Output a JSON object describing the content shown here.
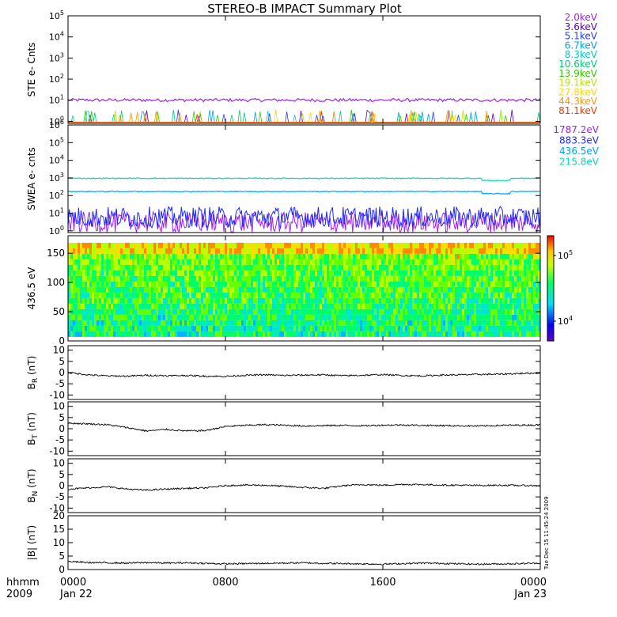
{
  "page": {
    "title": "STEREO-B IMPACT Summary Plot",
    "timestamp_label": "Tue Dec 15 11:45:24 2009"
  },
  "x_axis": {
    "range_hours": [
      0,
      24
    ],
    "tick_hours": [
      0,
      8,
      16,
      24
    ],
    "ticks": [
      "0000",
      "0800",
      "1600",
      "0000"
    ],
    "date_labels": [
      {
        "hour": 0,
        "text": "Jan 22"
      },
      {
        "hour": 24,
        "text": "Jan 23"
      }
    ],
    "row_label_1": "hhmm",
    "row_label_2": "2009"
  },
  "chart_data": [
    {
      "id": "ste",
      "type": "line",
      "ylabel": "STE e- Cnts",
      "yscale": "log",
      "ylim": [
        0.8,
        100000
      ],
      "ytick_exponents": [
        0,
        1,
        2,
        3,
        4,
        5
      ],
      "series": [
        {
          "name": "2.0keV",
          "color": "#a020f0",
          "typical": 10
        },
        {
          "name": "3.6keV",
          "color": "#5a00b4",
          "typical": 0.9
        },
        {
          "name": "5.1keV",
          "color": "#1e3cff",
          "typical": 0.9
        },
        {
          "name": "6.7keV",
          "color": "#00a0e0",
          "typical": 0.9
        },
        {
          "name": "8.3keV",
          "color": "#00c8c8",
          "typical": 0.9
        },
        {
          "name": "10.6keV",
          "color": "#00c878",
          "typical": 0.9
        },
        {
          "name": "13.9keV",
          "color": "#32c800",
          "typical": 0.9
        },
        {
          "name": "19.1keV",
          "color": "#b4e600",
          "typical": 0.9
        },
        {
          "name": "27.8keV",
          "color": "#ffd700",
          "typical": 0.9
        },
        {
          "name": "44.3keV",
          "color": "#ff9600",
          "typical": 0.9
        },
        {
          "name": "81.1keV",
          "color": "#e63c00",
          "typical": 0.9
        }
      ]
    },
    {
      "id": "swea",
      "type": "line",
      "ylabel": "SWEA e- cnts",
      "yscale": "log",
      "ylim": [
        0.8,
        1000000
      ],
      "ytick_exponents": [
        0,
        1,
        2,
        3,
        4,
        5,
        6
      ],
      "series": [
        {
          "name": "1787.2eV",
          "color": "#a020f0",
          "typical": 3
        },
        {
          "name": "883.3eV",
          "color": "#1e28ff",
          "typical": 6
        },
        {
          "name": "436.5eV",
          "color": "#00a0ff",
          "typical": 170
        },
        {
          "name": "215.8eV",
          "color": "#00dcb4",
          "typical": 950
        }
      ]
    },
    {
      "id": "pad",
      "type": "heatmap",
      "ylabel": "436.5 eV",
      "ylim": [
        0,
        180
      ],
      "yticks": [
        0,
        50,
        100,
        150
      ],
      "colorbar": {
        "scale": "log",
        "range": [
          5000,
          200000
        ],
        "ticks": [
          "10^4",
          "10^5"
        ]
      }
    },
    {
      "id": "br",
      "type": "line",
      "ylabel": "B_R (nT)",
      "ylim": [
        -12,
        12
      ],
      "yticks": [
        -10,
        -5,
        0,
        5,
        10
      ],
      "series": [
        {
          "x": [
            0,
            1,
            2,
            3,
            4,
            5,
            6,
            7,
            8,
            9,
            10,
            11,
            12,
            13,
            14,
            15,
            16,
            17,
            18,
            19,
            20,
            21,
            22,
            23,
            24
          ],
          "y": [
            0,
            -1,
            -1.5,
            -1.6,
            -1.2,
            -1.4,
            -1.3,
            -1.6,
            -1.7,
            -1.2,
            -1.0,
            -1.3,
            -1.1,
            -1.0,
            -1.4,
            -1.2,
            -0.9,
            -1.3,
            -1.5,
            -1.1,
            -1.0,
            -0.8,
            -0.7,
            -0.4,
            -0.2
          ]
        }
      ]
    },
    {
      "id": "bt",
      "type": "line",
      "ylabel": "B_T (nT)",
      "ylim": [
        -12,
        12
      ],
      "yticks": [
        -10,
        -5,
        0,
        5,
        10
      ],
      "series": [
        {
          "x": [
            0,
            1,
            2,
            3,
            4,
            5,
            6,
            7,
            8,
            9,
            10,
            11,
            12,
            13,
            14,
            15,
            16,
            17,
            18,
            19,
            20,
            21,
            22,
            23,
            24
          ],
          "y": [
            2.5,
            2.2,
            1.8,
            0.5,
            -1.0,
            -0.3,
            -1.0,
            -0.8,
            1.0,
            1.5,
            1.8,
            1.6,
            1.2,
            1.4,
            1.5,
            1.3,
            1.6,
            1.7,
            1.5,
            1.4,
            1.3,
            1.2,
            1.5,
            1.6,
            1.7
          ]
        }
      ]
    },
    {
      "id": "bn",
      "type": "line",
      "ylabel": "B_N (nT)",
      "ylim": [
        -12,
        12
      ],
      "yticks": [
        -10,
        -5,
        0,
        5,
        10
      ],
      "series": [
        {
          "x": [
            0,
            1,
            2,
            3,
            4,
            5,
            6,
            7,
            8,
            9,
            10,
            11,
            12,
            13,
            14,
            15,
            16,
            17,
            18,
            19,
            20,
            21,
            22,
            23,
            24
          ],
          "y": [
            -1.5,
            -1.0,
            -0.5,
            -1.5,
            -2.0,
            -1.5,
            -1.2,
            -1.0,
            0,
            0.3,
            0.2,
            -0.3,
            -0.8,
            -1.2,
            0,
            0.5,
            0.2,
            0.6,
            0.5,
            0.3,
            0.2,
            0.1,
            0.2,
            0.1,
            0
          ]
        }
      ]
    },
    {
      "id": "bmag",
      "type": "line",
      "ylabel": "|B| (nT)",
      "ylim": [
        0,
        20
      ],
      "yticks": [
        0,
        5,
        10,
        15,
        20
      ],
      "series": [
        {
          "x": [
            0,
            1,
            2,
            3,
            4,
            5,
            6,
            7,
            8,
            9,
            10,
            11,
            12,
            13,
            14,
            15,
            16,
            17,
            18,
            19,
            20,
            21,
            22,
            23,
            24
          ],
          "y": [
            3.0,
            2.6,
            2.5,
            2.4,
            2.6,
            2.4,
            2.5,
            2.3,
            2.1,
            2.2,
            2.3,
            2.4,
            2.5,
            2.3,
            2.2,
            2.1,
            2.0,
            2.2,
            2.4,
            2.3,
            2.1,
            2.0,
            2.1,
            2.2,
            2.4
          ]
        }
      ]
    }
  ]
}
